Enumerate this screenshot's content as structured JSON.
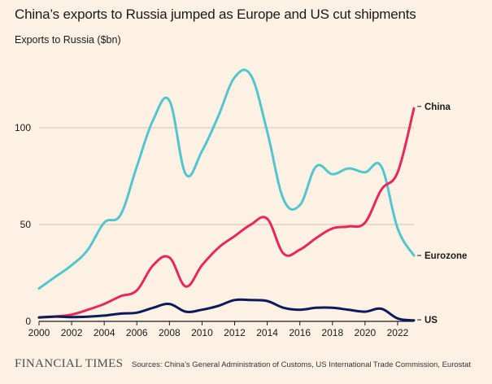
{
  "header": {
    "title": "China’s exports to Russia jumped as Europe and US cut shipments",
    "ylabel": "Exports to Russia ($bn)"
  },
  "footer": {
    "logo": "FINANCIAL TIMES",
    "source": "Sources: China’s General Administration of Customs, US International Trade Commission, Eurostat"
  },
  "chart_data": {
    "type": "line",
    "title": "China’s exports to Russia jumped as Europe and US cut shipments",
    "xlabel": "",
    "ylabel": "Exports to Russia ($bn)",
    "xlim": [
      2000,
      2023
    ],
    "ylim": [
      0,
      130
    ],
    "x_ticks": [
      "2000",
      "2002",
      "2004",
      "2006",
      "2008",
      "2010",
      "2012",
      "2014",
      "2016",
      "2018",
      "2020",
      "2022"
    ],
    "y_ticks": [
      "0",
      "50",
      "100"
    ],
    "grid": "horizontal",
    "legend": "direct labels at line ends",
    "series": [
      {
        "name": "Eurozone",
        "color": "#53c5cf",
        "x": [
          2000,
          2001,
          2002,
          2003,
          2004,
          2005,
          2006,
          2007,
          2008,
          2009,
          2010,
          2011,
          2012,
          2013,
          2014,
          2015,
          2016,
          2017,
          2018,
          2019,
          2020,
          2021,
          2022,
          2023
        ],
        "values": [
          17,
          23,
          29,
          37,
          51,
          55,
          80,
          104,
          114,
          76,
          88,
          106,
          126,
          127,
          98,
          63,
          60,
          80,
          76,
          79,
          77,
          80,
          48,
          34
        ]
      },
      {
        "name": "China",
        "color": "#e8285a",
        "x": [
          2000,
          2001,
          2002,
          2003,
          2004,
          2005,
          2006,
          2007,
          2008,
          2009,
          2010,
          2011,
          2012,
          2013,
          2014,
          2015,
          2016,
          2017,
          2018,
          2019,
          2020,
          2021,
          2022,
          2023
        ],
        "values": [
          2,
          2.5,
          3.5,
          6,
          9,
          13,
          16,
          29,
          33,
          18,
          29,
          38,
          44,
          50,
          53,
          35,
          37,
          43,
          48,
          49,
          51,
          68,
          77,
          110
        ]
      },
      {
        "name": "US",
        "color": "#0a1a5c",
        "x": [
          2000,
          2001,
          2002,
          2003,
          2004,
          2005,
          2006,
          2007,
          2008,
          2009,
          2010,
          2011,
          2012,
          2013,
          2014,
          2015,
          2016,
          2017,
          2018,
          2019,
          2020,
          2021,
          2022,
          2023
        ],
        "values": [
          2,
          2.5,
          2.2,
          2.4,
          3,
          4,
          4.5,
          7,
          9,
          5,
          6,
          8,
          11,
          11,
          10.5,
          7,
          6,
          7,
          7,
          6,
          5,
          6.5,
          1.5,
          0.5
        ]
      }
    ]
  }
}
